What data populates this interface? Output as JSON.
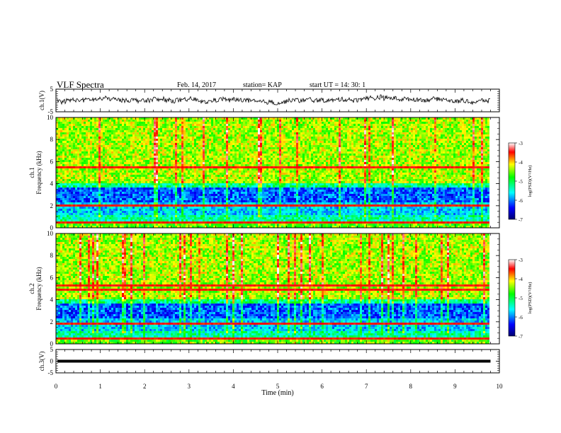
{
  "header": {
    "title": "VLF Spectra",
    "date": "Feb. 14, 2017",
    "station": "station= KAP",
    "start_ut": "start  UT =   14: 30: 1"
  },
  "chart_data": [
    {
      "type": "line",
      "panel": "ch1-waveform",
      "ylabel": "ch.1(V)",
      "ylim": [
        -5,
        5
      ],
      "yticks": [
        "5",
        "-5"
      ],
      "xlim": [
        0,
        10
      ],
      "description_values": "noisy waveform centered near 0 V, amplitude about ±2 V",
      "y_mean": 0.3,
      "y_amplitude": 2
    },
    {
      "type": "heatmap",
      "panel": "ch1-spectrogram",
      "ylabel_line1": "ch.1",
      "ylabel_line2": "Frequency (kHz)",
      "ylim": [
        0,
        10
      ],
      "yticks": [
        "0",
        "2",
        "4",
        "6",
        "8",
        "10"
      ],
      "xlim": [
        0,
        10
      ],
      "colorbar": {
        "label": "log(PSD)(V²/Hz)",
        "range": [
          -7,
          -3
        ],
        "ticks": [
          "-3",
          "-4",
          "-5",
          "-6",
          "-7"
        ]
      },
      "bands_khz": [
        0.4,
        2.1,
        5.4
      ],
      "data_end_min": 9.8
    },
    {
      "type": "heatmap",
      "panel": "ch2-spectrogram",
      "ylabel_line1": "ch.2",
      "ylabel_line2": "Frequency (kHz)",
      "ylim": [
        0,
        10
      ],
      "yticks": [
        "0",
        "2",
        "4",
        "6",
        "8",
        "10"
      ],
      "xlim": [
        0,
        10
      ],
      "colorbar": {
        "label": "log(PSD)(V²/Hz)",
        "range": [
          -7,
          -3
        ],
        "ticks": [
          "-3",
          "-4",
          "-5",
          "-6",
          "-7"
        ]
      },
      "bands_khz": [
        0.4,
        1.9,
        4.9,
        5.3
      ],
      "data_end_min": 9.8
    },
    {
      "type": "line",
      "panel": "ch3-waveform",
      "ylabel": "ch.3(V)",
      "ylim": [
        -5,
        5
      ],
      "yticks": [
        "5",
        "0",
        "-5"
      ],
      "xlim": [
        0,
        10
      ],
      "constant_value": 0,
      "xlabel": "Time (min)",
      "xticks": [
        "0",
        "1",
        "2",
        "3",
        "4",
        "5",
        "6",
        "7",
        "8",
        "9",
        "10"
      ]
    }
  ]
}
